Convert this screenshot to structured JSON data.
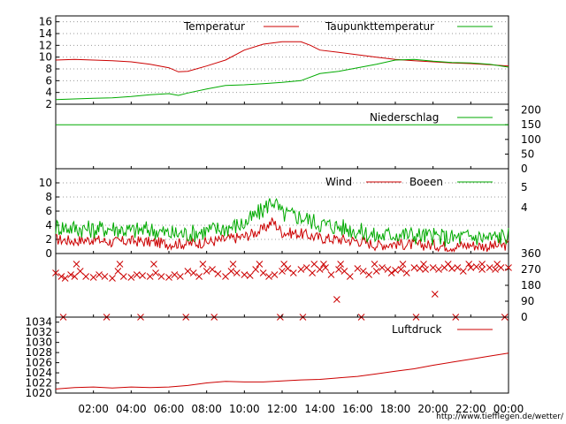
{
  "source_url": "http://www.tiefflegen.de/wetter/",
  "time_ticks": [
    "02:00",
    "04:00",
    "06:00",
    "08:00",
    "10:00",
    "12:00",
    "14:00",
    "16:00",
    "18:00",
    "20:00",
    "22:00",
    "00:00"
  ],
  "colors": {
    "red": "#cc0000",
    "green": "#00aa00",
    "grid": "#999999"
  },
  "chart_data": [
    {
      "type": "line",
      "panel": "temperature",
      "x_unit": "hour",
      "xlim": [
        0,
        24
      ],
      "ylim": [
        2,
        17
      ],
      "yticks": [
        2,
        4,
        6,
        8,
        10,
        12,
        14,
        16
      ],
      "legend_position": "top",
      "series": [
        {
          "name": "Temperatur",
          "color": "#cc0000",
          "x": [
            0,
            1,
            2,
            3,
            4,
            5,
            6,
            6.5,
            7,
            8,
            9,
            10,
            11,
            12,
            13,
            13.5,
            14,
            15,
            16,
            17,
            18,
            19,
            20,
            21,
            22,
            23,
            24
          ],
          "values": [
            9.5,
            9.6,
            9.5,
            9.4,
            9.2,
            8.8,
            8.2,
            7.5,
            7.6,
            8.5,
            9.5,
            11.2,
            12.2,
            12.6,
            12.6,
            12.0,
            11.2,
            10.8,
            10.4,
            10.0,
            9.6,
            9.4,
            9.2,
            9.0,
            8.9,
            8.7,
            8.5
          ]
        },
        {
          "name": "Taupunkttemperatur",
          "color": "#00aa00",
          "x": [
            0,
            1,
            2,
            3,
            4,
            5,
            6,
            6.5,
            7,
            8,
            9,
            10,
            11,
            12,
            13,
            14,
            15,
            16,
            17,
            18,
            19,
            20,
            21,
            22,
            23,
            24
          ],
          "values": [
            2.8,
            2.9,
            3.0,
            3.1,
            3.3,
            3.6,
            3.8,
            3.5,
            3.9,
            4.6,
            5.2,
            5.3,
            5.5,
            5.7,
            6.0,
            7.2,
            7.6,
            8.2,
            8.8,
            9.5,
            9.6,
            9.3,
            9.1,
            9.0,
            8.8,
            8.3
          ]
        }
      ]
    },
    {
      "type": "line",
      "panel": "precipitation",
      "xlim": [
        0,
        24
      ],
      "ylim": [
        0,
        220
      ],
      "yticks": [
        0,
        50,
        100,
        150,
        200
      ],
      "series": [
        {
          "name": "Niederschlag",
          "color": "#00aa00",
          "x": [
            0,
            24
          ],
          "values": [
            150,
            150
          ]
        }
      ]
    },
    {
      "type": "line",
      "panel": "wind",
      "xlim": [
        0,
        24
      ],
      "ylim": [
        0,
        12
      ],
      "yticks": [
        0,
        2,
        4,
        6,
        8,
        10
      ],
      "right_ticks": [
        "5",
        "4"
      ],
      "series": [
        {
          "name": "Wind",
          "color": "#cc0000",
          "x": [
            0,
            1,
            2,
            3,
            4,
            5,
            6,
            7,
            8,
            9,
            10,
            11,
            11.5,
            12,
            13,
            14,
            15,
            16,
            17,
            18,
            19,
            20,
            21,
            22,
            23,
            24
          ],
          "values": [
            2.0,
            1.8,
            2.0,
            1.6,
            1.8,
            1.6,
            1.4,
            1.4,
            1.6,
            2.0,
            2.4,
            3.4,
            4.6,
            3.0,
            2.8,
            2.2,
            2.0,
            1.8,
            1.2,
            1.4,
            1.2,
            1.2,
            1.0,
            1.2,
            1.0,
            1.2
          ]
        },
        {
          "name": "Boeen",
          "color": "#00aa00",
          "x": [
            0,
            1,
            2,
            3,
            4,
            5,
            6,
            7,
            8,
            9,
            10,
            11,
            11.5,
            12,
            13,
            14,
            15,
            16,
            17,
            18,
            19,
            20,
            21,
            22,
            23,
            24
          ],
          "values": [
            3.8,
            3.6,
            3.4,
            3.6,
            3.2,
            3.4,
            2.8,
            2.8,
            3.2,
            3.6,
            4.2,
            6.2,
            7.6,
            5.6,
            5.2,
            4.2,
            3.8,
            3.2,
            2.4,
            2.8,
            2.6,
            2.4,
            2.2,
            2.4,
            2.2,
            2.6
          ]
        }
      ]
    },
    {
      "type": "scatter",
      "panel": "wind_direction",
      "xlim": [
        0,
        24
      ],
      "ylim": [
        0,
        360
      ],
      "yticks": [
        0,
        90,
        180,
        270,
        360
      ],
      "series": [
        {
          "name": "",
          "color": "#cc0000",
          "marker": "x",
          "x": [
            0,
            0.3,
            0.5,
            0.8,
            1,
            1.3,
            1.6,
            2,
            2.3,
            2.6,
            3,
            3.3,
            3.6,
            4,
            4.3,
            4.6,
            5,
            5.3,
            5.6,
            6,
            6.3,
            6.6,
            7,
            7.3,
            7.6,
            8,
            8.3,
            8.6,
            9,
            9.3,
            9.6,
            10,
            10.3,
            10.6,
            11,
            11.3,
            11.6,
            12,
            12.3,
            12.6,
            13,
            13.3,
            13.6,
            14,
            14.3,
            14.6,
            15,
            15.3,
            15.6,
            16,
            16.3,
            16.6,
            17,
            17.3,
            17.6,
            18,
            18.3,
            18.6,
            19,
            19.3,
            19.6,
            20,
            20.3,
            20.6,
            21,
            21.3,
            21.6,
            22,
            22.3,
            22.6,
            23,
            23.3,
            23.6,
            24,
            1.1,
            3.4,
            5.2,
            7.8,
            9.4,
            10.8,
            12.1,
            13.7,
            14.2,
            15.1,
            16.9,
            18.4,
            19.5,
            20.8,
            21.9,
            22.6,
            23.4,
            14.9,
            17.8,
            20.1,
            0.4,
            2.7,
            4.5,
            6.9,
            8.4,
            11.9,
            13.1,
            16.2,
            19.1,
            21.2,
            23.8
          ],
          "values": [
            250,
            230,
            220,
            240,
            230,
            260,
            230,
            225,
            240,
            230,
            220,
            260,
            230,
            225,
            240,
            235,
            230,
            250,
            230,
            225,
            240,
            230,
            260,
            250,
            230,
            260,
            270,
            245,
            230,
            260,
            250,
            240,
            235,
            270,
            250,
            230,
            240,
            260,
            275,
            250,
            270,
            280,
            250,
            270,
            280,
            240,
            270,
            260,
            230,
            275,
            260,
            240,
            260,
            280,
            270,
            265,
            270,
            250,
            280,
            275,
            270,
            280,
            270,
            280,
            275,
            280,
            260,
            280,
            285,
            270,
            280,
            270,
            280,
            280,
            300,
            300,
            300,
            300,
            300,
            300,
            300,
            300,
            300,
            300,
            300,
            300,
            300,
            300,
            300,
            300,
            300,
            100,
            250,
            130,
            0,
            0,
            0,
            0,
            0,
            0,
            0,
            0,
            0,
            0,
            0
          ]
        }
      ]
    },
    {
      "type": "line",
      "panel": "pressure",
      "xlim": [
        0,
        24
      ],
      "ylim": [
        1020,
        1035
      ],
      "yticks": [
        1020,
        1022,
        1024,
        1026,
        1028,
        1030,
        1032,
        1034
      ],
      "series": [
        {
          "name": "Luftdruck",
          "color": "#cc0000",
          "x": [
            0,
            1,
            2,
            3,
            4,
            5,
            6,
            7,
            8,
            9,
            10,
            11,
            12,
            13,
            14,
            15,
            16,
            17,
            18,
            19,
            20,
            21,
            22,
            23,
            24
          ],
          "values": [
            1020.8,
            1021.1,
            1021.2,
            1021.0,
            1021.2,
            1021.1,
            1021.2,
            1021.5,
            1022.0,
            1022.3,
            1022.2,
            1022.2,
            1022.4,
            1022.6,
            1022.7,
            1023.0,
            1023.3,
            1023.8,
            1024.3,
            1024.8,
            1025.5,
            1026.1,
            1026.7,
            1027.3,
            1027.9
          ]
        }
      ]
    }
  ]
}
